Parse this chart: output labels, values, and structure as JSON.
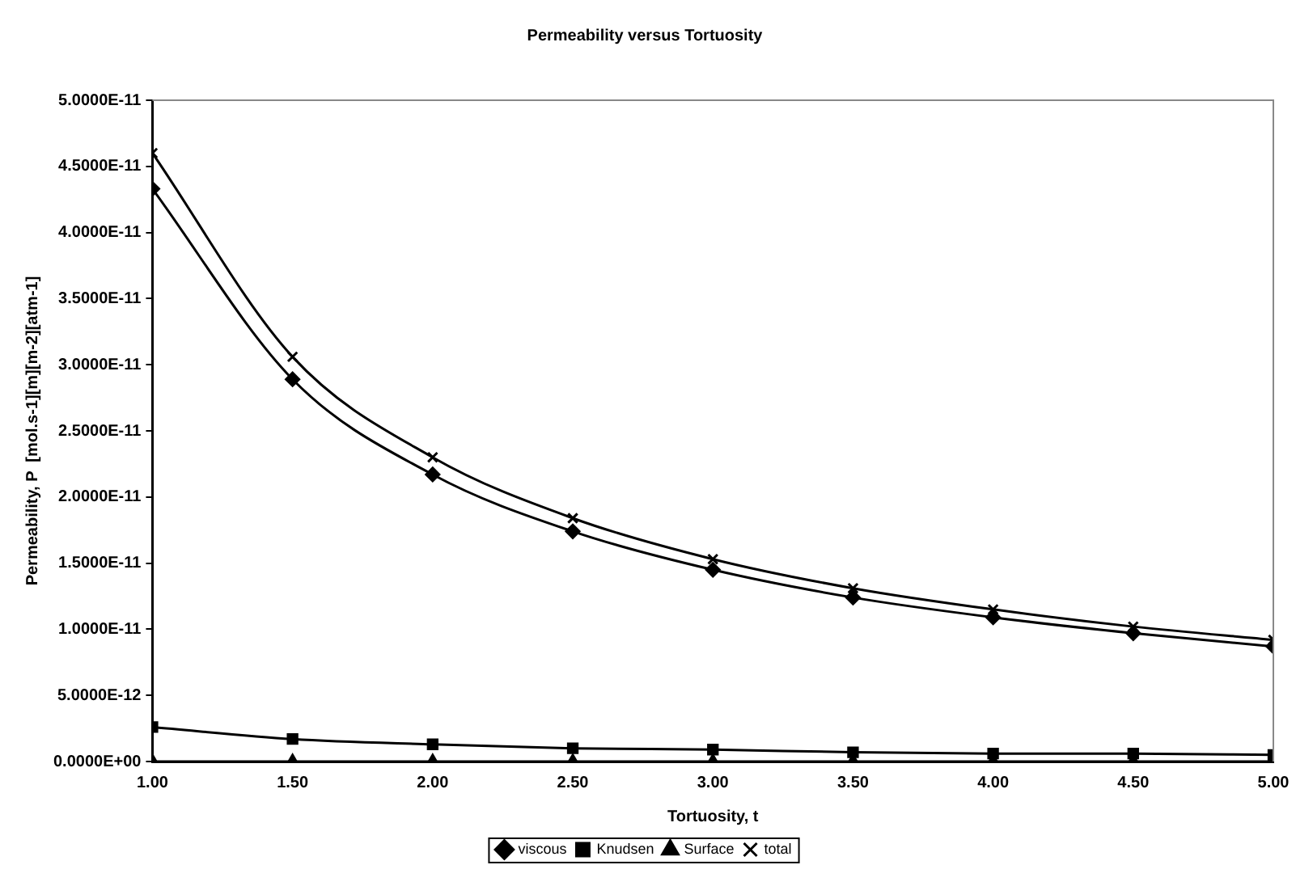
{
  "chart_data": {
    "type": "line",
    "title": "Permeability versus Tortuosity",
    "xlabel": "Tortuosity, t",
    "ylabel": "Permeability, P  [mol.s-1][m][m-2][atm-1]",
    "x": [
      1,
      1.5,
      2,
      2.5,
      3,
      3.5,
      4,
      4.5,
      5
    ],
    "series": [
      {
        "name": "viscous",
        "color": "#000000",
        "marker": "diamond",
        "values": [
          4.33e-11,
          2.89e-11,
          2.17e-11,
          1.74e-11,
          1.45e-11,
          1.24e-11,
          1.09e-11,
          9.7e-12,
          8.7e-12
        ]
      },
      {
        "name": "Knudsen",
        "color": "#000000",
        "marker": "square",
        "values": [
          2.6e-12,
          1.7e-12,
          1.3e-12,
          1e-12,
          9e-13,
          7e-13,
          6e-13,
          6e-13,
          5e-13
        ]
      },
      {
        "name": "Surface",
        "color": "#000000",
        "marker": "triangle",
        "values": [
          0,
          0,
          0,
          0,
          0,
          0,
          0,
          0,
          0
        ]
      },
      {
        "name": "total",
        "color": "#000000",
        "marker": "cross",
        "values": [
          4.6e-11,
          3.06e-11,
          2.3e-11,
          1.84e-11,
          1.53e-11,
          1.31e-11,
          1.15e-11,
          1.02e-11,
          9.2e-12
        ]
      }
    ],
    "xlim": [
      1,
      5
    ],
    "xticks": [
      {
        "value": 1,
        "label": "1.00"
      },
      {
        "value": 1.5,
        "label": "1.50"
      },
      {
        "value": 2,
        "label": "2.00"
      },
      {
        "value": 2.5,
        "label": "2.50"
      },
      {
        "value": 3,
        "label": "3.00"
      },
      {
        "value": 3.5,
        "label": "3.50"
      },
      {
        "value": 4,
        "label": "4.00"
      },
      {
        "value": 4.5,
        "label": "4.50"
      },
      {
        "value": 5,
        "label": "5.00"
      }
    ],
    "ylim": [
      0,
      5e-11
    ],
    "yticks": [
      {
        "value": 0,
        "label": "0.0000E+00"
      },
      {
        "value": 5e-12,
        "label": "5.0000E-12"
      },
      {
        "value": 1e-11,
        "label": "1.0000E-11"
      },
      {
        "value": 1.5e-11,
        "label": "1.5000E-11"
      },
      {
        "value": 2e-11,
        "label": "2.0000E-11"
      },
      {
        "value": 2.5e-11,
        "label": "2.5000E-11"
      },
      {
        "value": 3e-11,
        "label": "3.0000E-11"
      },
      {
        "value": 3.5e-11,
        "label": "3.5000E-11"
      },
      {
        "value": 4e-11,
        "label": "4.0000E-11"
      },
      {
        "value": 4.5e-11,
        "label": "4.5000E-11"
      },
      {
        "value": 5e-11,
        "label": "5.0000E-11"
      }
    ],
    "grid": false,
    "legend": "bottom",
    "line_style": "solid"
  }
}
